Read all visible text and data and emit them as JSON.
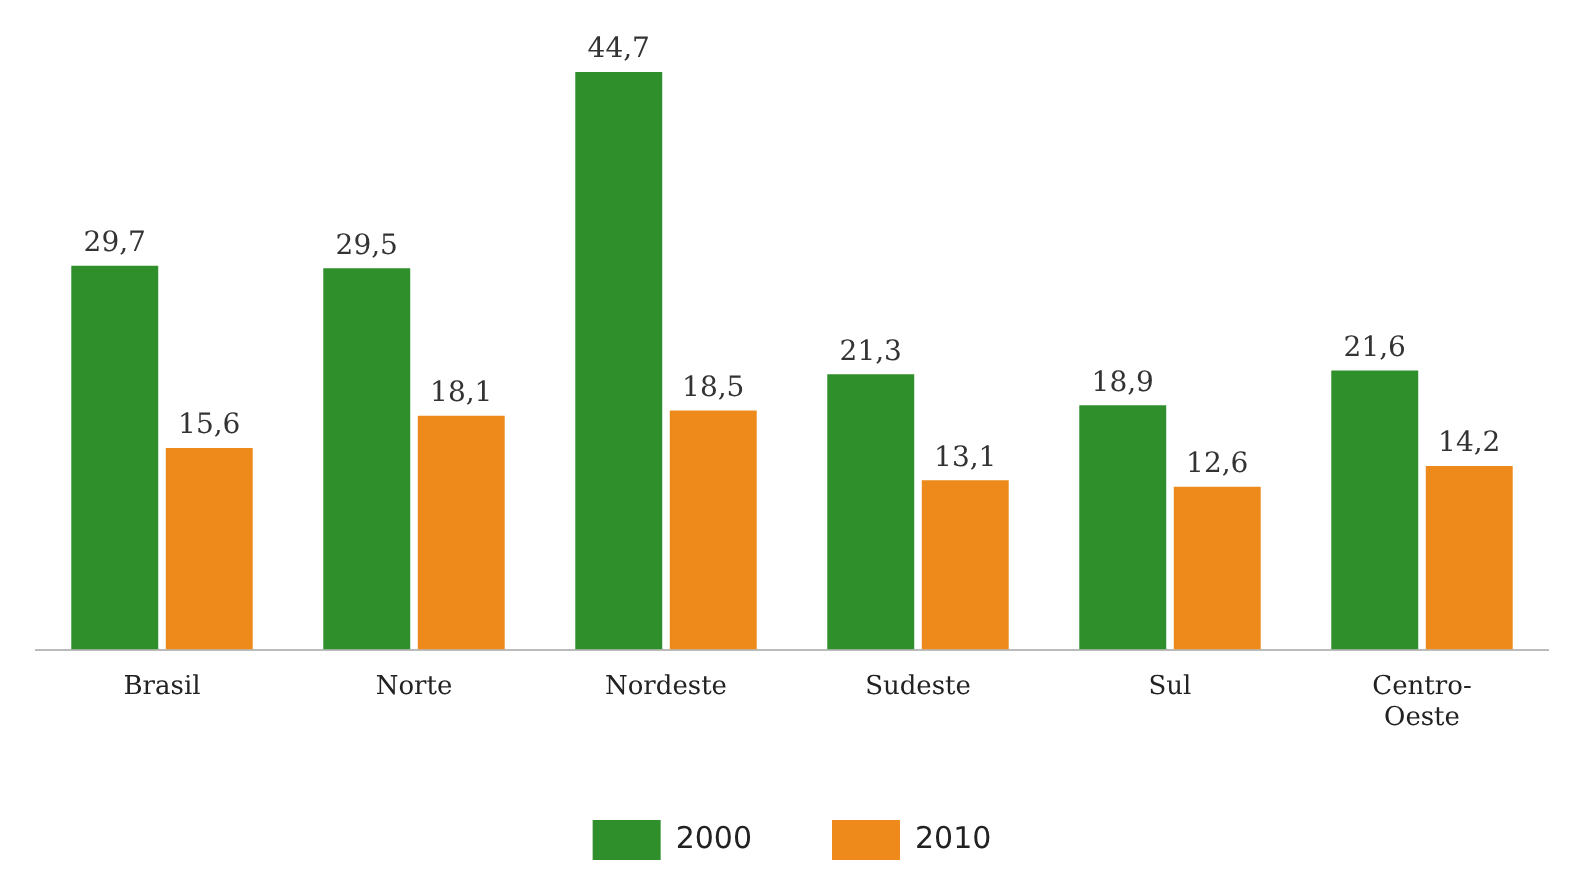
{
  "chart_data": {
    "type": "bar",
    "categories": [
      "Brasil",
      "Norte",
      "Nordeste",
      "Sudeste",
      "Sul",
      "Centro-Oeste"
    ],
    "series": [
      {
        "name": "2000",
        "color": "#2f8f2a",
        "values": [
          29.7,
          29.5,
          44.7,
          21.3,
          18.9,
          21.6
        ],
        "value_labels": [
          "29,7",
          "29,5",
          "44,7",
          "21,3",
          "18,9",
          "21,6"
        ]
      },
      {
        "name": "2010",
        "color": "#ee8a1c",
        "values": [
          15.6,
          18.1,
          18.5,
          13.1,
          12.6,
          14.2
        ],
        "value_labels": [
          "15,6",
          "18,1",
          "18,5",
          "13,1",
          "12,6",
          "14,2"
        ]
      }
    ],
    "legend": "bottom"
  }
}
